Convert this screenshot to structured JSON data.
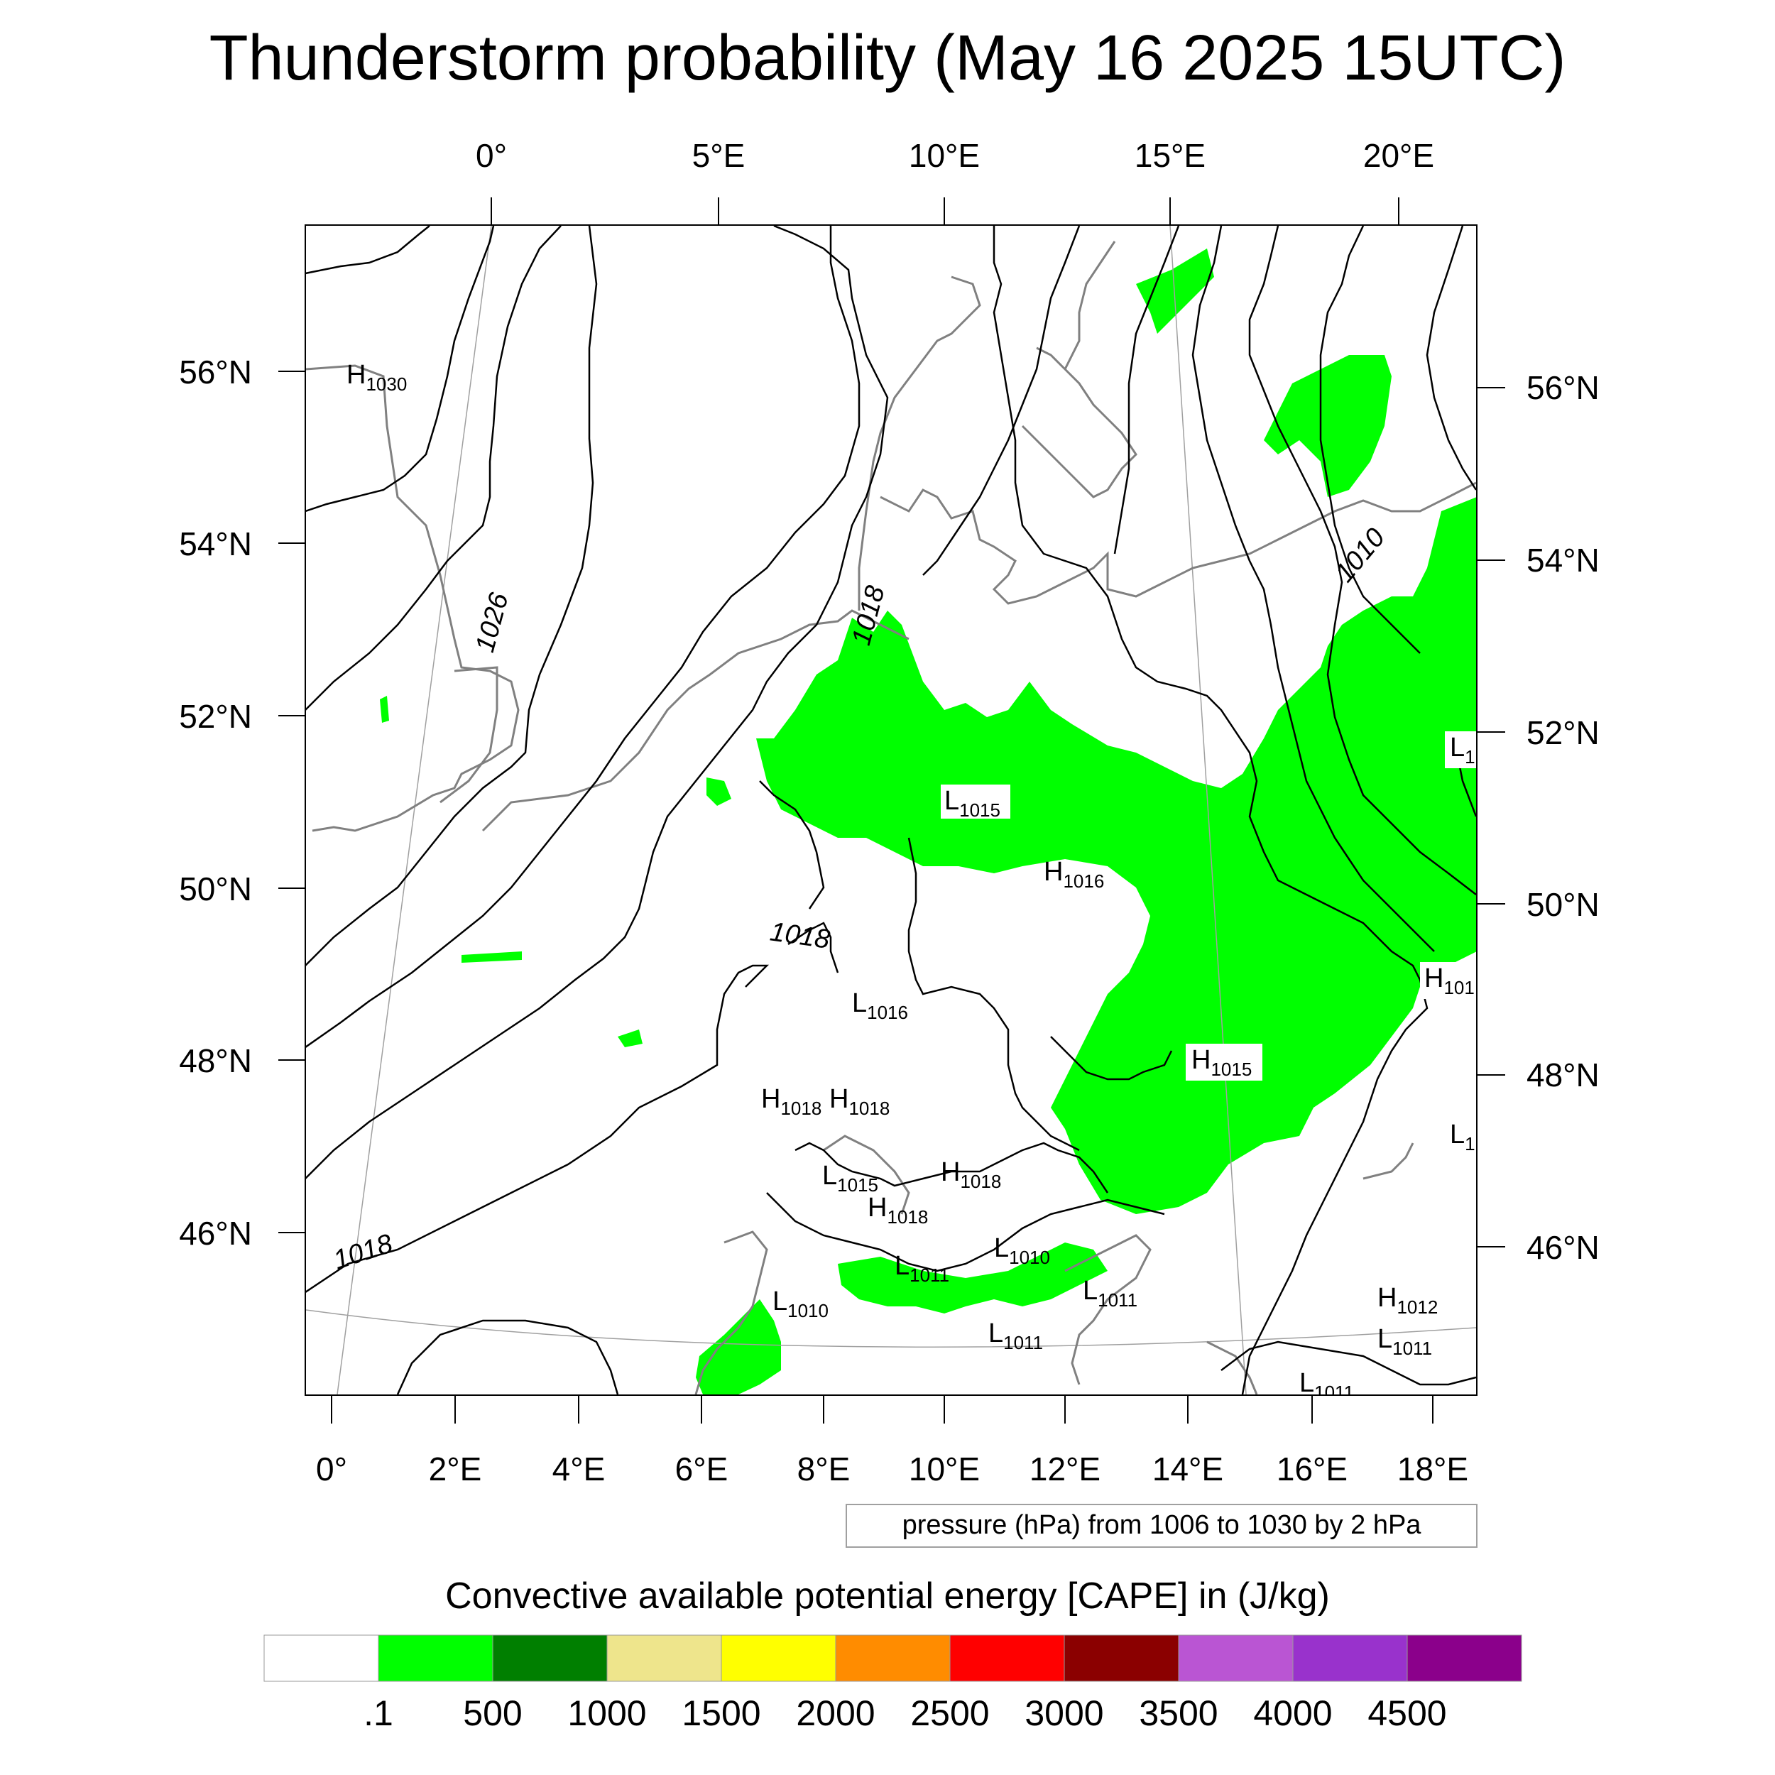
{
  "title": "Thunderstorm probability (May 16 2025 15UTC)",
  "top_lon_labels": [
    "0°",
    "5°E",
    "10°E",
    "15°E",
    "20°E"
  ],
  "bottom_lon_labels": [
    "0°",
    "2°E",
    "4°E",
    "6°E",
    "8°E",
    "10°E",
    "12°E",
    "14°E",
    "16°E",
    "18°E"
  ],
  "left_lat_labels": [
    "56°N",
    "54°N",
    "52°N",
    "50°N",
    "48°N",
    "46°N"
  ],
  "right_lat_labels": [
    "56°N",
    "54°N",
    "52°N",
    "50°N",
    "48°N",
    "46°N"
  ],
  "contour_info": "pressure (hPa) from 1006 to 1030 by 2 hPa",
  "colorbar": {
    "title": "Convective available potential energy [CAPE] in (J/kg)",
    "tick_labels": [
      ".1",
      "500",
      "1000",
      "1500",
      "2000",
      "2500",
      "3000",
      "3500",
      "4000",
      "4500"
    ],
    "colors": [
      "#ffffff",
      "#00ff00",
      "#007f00",
      "#eee58c",
      "#ffff00",
      "#ff8c00",
      "#ff0000",
      "#8b0000",
      "#ba55d3",
      "#9932cc",
      "#8b008b"
    ]
  },
  "isobar_labels": [
    "1026",
    "1018",
    "1018",
    "1018",
    "1010"
  ],
  "pressure_centers": [
    {
      "type": "H",
      "value": "1030"
    },
    {
      "type": "L",
      "value": "1015"
    },
    {
      "type": "H",
      "value": "1016"
    },
    {
      "type": "L",
      "value": "1016"
    },
    {
      "type": "H",
      "value": "1015"
    },
    {
      "type": "H",
      "value": "1018"
    },
    {
      "type": "H",
      "value": "1018"
    },
    {
      "type": "H",
      "value": "1018"
    },
    {
      "type": "L",
      "value": "1015"
    },
    {
      "type": "H",
      "value": "1018"
    },
    {
      "type": "L",
      "value": "1011"
    },
    {
      "type": "L",
      "value": "1010"
    },
    {
      "type": "L",
      "value": "1010"
    },
    {
      "type": "L",
      "value": "1011"
    },
    {
      "type": "L",
      "value": "1011"
    },
    {
      "type": "H",
      "value": "1012"
    },
    {
      "type": "L",
      "value": "1011"
    },
    {
      "type": "L",
      "value": "1011"
    },
    {
      "type": "H",
      "value": "101"
    },
    {
      "type": "L",
      "value": "1"
    },
    {
      "type": "L",
      "value": "1"
    }
  ],
  "colors": {
    "cape_green": "#00ff00",
    "coastline": "#808080",
    "isobar": "#000000",
    "graticule": "#a0a0a0"
  }
}
